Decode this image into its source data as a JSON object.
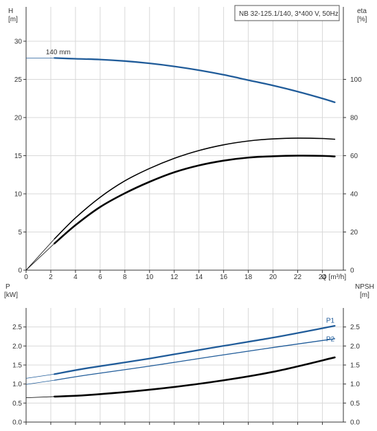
{
  "chart_data": [
    {
      "type": "line",
      "title": "NB 32-125.1/140, 3*400 V, 50Hz",
      "xlabel": "Q [m³/h]",
      "ylabel_left": [
        "H",
        "[m]"
      ],
      "ylabel_right": [
        "eta",
        "[%]"
      ],
      "x_ticks": [
        0,
        2,
        4,
        6,
        8,
        10,
        12,
        14,
        16,
        18,
        20,
        22,
        24
      ],
      "y_ticks_left": [
        0,
        5,
        10,
        15,
        20,
        25,
        30
      ],
      "y_ticks_right": [
        0,
        20,
        40,
        60,
        80,
        100
      ],
      "xlim": [
        0,
        25.7
      ],
      "ylim_left": [
        0,
        34.5
      ],
      "ylim_right": [
        0,
        138
      ],
      "grid": true,
      "series": [
        {
          "name": "140 mm",
          "axis": "left",
          "color": "#1f5b99",
          "width": 2.3,
          "x": [
            2.3,
            4,
            6,
            8,
            10,
            12,
            14,
            16,
            18,
            20,
            22,
            24,
            25
          ],
          "y": [
            27.8,
            27.7,
            27.6,
            27.4,
            27.1,
            26.7,
            26.2,
            25.6,
            24.9,
            24.2,
            23.4,
            22.5,
            22.0
          ],
          "lead": {
            "x": [
              0,
              2.3
            ],
            "y": [
              27.8,
              27.8
            ]
          }
        },
        {
          "axis": "right",
          "color": "#000000",
          "width": 1.6,
          "x": [
            2.3,
            4,
            6,
            8,
            10,
            12,
            14,
            16,
            18,
            20,
            22,
            24,
            25
          ],
          "y": [
            16.4,
            27.4,
            38.2,
            46.8,
            53.3,
            58.6,
            62.7,
            65.7,
            67.7,
            68.8,
            69.2,
            69.0,
            68.6
          ],
          "lead": {
            "x": [
              0,
              2.3
            ],
            "y": [
              0,
              16.4
            ]
          }
        },
        {
          "axis": "right",
          "color": "#000000",
          "width": 2.6,
          "x": [
            2.3,
            4,
            6,
            8,
            10,
            12,
            14,
            16,
            18,
            20,
            22,
            24,
            25
          ],
          "y": [
            14.0,
            23.6,
            33.1,
            40.3,
            46.3,
            51.3,
            54.9,
            57.4,
            59.0,
            59.7,
            60.0,
            59.9,
            59.6
          ],
          "lead": {
            "x": [
              0,
              2.3
            ],
            "y": [
              0,
              14.0
            ]
          }
        }
      ],
      "annotations": [
        {
          "text": "140 mm",
          "x": 1.6,
          "y": 28.3
        }
      ]
    },
    {
      "type": "line",
      "ylabel_left": [
        "P",
        "[kW]"
      ],
      "ylabel_right": [
        "NPSH",
        "[m]"
      ],
      "y_ticks_left": [
        0.0,
        0.5,
        1.0,
        1.5,
        2.0,
        2.5
      ],
      "y_ticks_right": [
        0.0,
        0.5,
        1.0,
        1.5,
        2.0,
        2.5
      ],
      "xlim": [
        0,
        25.7
      ],
      "ylim_left": [
        0,
        3.0
      ],
      "ylim_right": [
        0,
        3.0
      ],
      "grid": true,
      "series": [
        {
          "name": "P1",
          "axis": "left",
          "color": "#1f5b99",
          "width": 2.3,
          "x": [
            2.3,
            5,
            10,
            15,
            20,
            25
          ],
          "y": [
            1.26,
            1.42,
            1.67,
            1.95,
            2.22,
            2.53
          ],
          "lead": {
            "x": [
              0,
              2.3
            ],
            "y": [
              1.15,
              1.26
            ]
          }
        },
        {
          "name": "P2",
          "axis": "left",
          "color": "#1f5b99",
          "width": 1.3,
          "x": [
            2.3,
            5,
            10,
            15,
            20,
            25
          ],
          "y": [
            1.1,
            1.24,
            1.47,
            1.72,
            1.96,
            2.19
          ],
          "lead": {
            "x": [
              0,
              2.3
            ],
            "y": [
              0.99,
              1.1
            ]
          }
        },
        {
          "axis": "right",
          "color": "#000000",
          "width": 2.6,
          "x": [
            2.3,
            5,
            10,
            15,
            20,
            25
          ],
          "y": [
            0.67,
            0.71,
            0.85,
            1.05,
            1.32,
            1.7
          ],
          "lead": {
            "x": [
              0,
              2.3
            ],
            "y": [
              0.64,
              0.67
            ]
          }
        }
      ],
      "annotations": [
        {
          "text": "P1",
          "x": 24.3,
          "y": 2.61
        },
        {
          "text": "P2",
          "x": 24.3,
          "y": 2.12
        }
      ]
    }
  ]
}
